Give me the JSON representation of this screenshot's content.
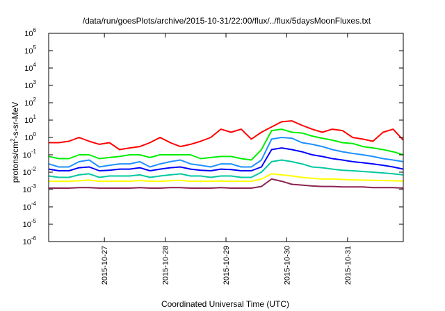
{
  "chart_data": {
    "type": "line",
    "title": "/data/run/goesPlots/archive/2015-10-31/22:00/flux/../flux/5daysMoonFluxes.txt",
    "xlabel": "Coordinated Universal Time (UTC)",
    "ylabel": {
      "prefix": "protons/cm",
      "sup": "2",
      "suffix": "-s-sr-MeV"
    },
    "yscale": "log",
    "ylim": [
      1e-06,
      1000000.0
    ],
    "y_ticks": [
      {
        "base": "10",
        "exp": "-6",
        "value": 1e-06
      },
      {
        "base": "10",
        "exp": "-5",
        "value": 1e-05
      },
      {
        "base": "10",
        "exp": "-4",
        "value": 0.0001
      },
      {
        "base": "10",
        "exp": "-3",
        "value": 0.001
      },
      {
        "base": "10",
        "exp": "-2",
        "value": 0.01
      },
      {
        "base": "10",
        "exp": "-1",
        "value": 0.1
      },
      {
        "base": "10",
        "exp": "0",
        "value": 1
      },
      {
        "base": "10",
        "exp": "1",
        "value": 10
      },
      {
        "base": "10",
        "exp": "2",
        "value": 100
      },
      {
        "base": "10",
        "exp": "3",
        "value": 1000
      },
      {
        "base": "10",
        "exp": "4",
        "value": 10000
      },
      {
        "base": "10",
        "exp": "5",
        "value": 100000
      },
      {
        "base": "10",
        "exp": "6",
        "value": 1000000
      }
    ],
    "xlim": [
      "2015-10-26T02:00",
      "2015-10-31T22:00"
    ],
    "x_ticks": [
      "2015-10-27",
      "2015-10-28",
      "2015-10-29",
      "2015-10-30",
      "2015-10-31"
    ],
    "grid": false,
    "legend": "none",
    "x": [
      "2015-10-26T02:00",
      "2015-10-26T06:00",
      "2015-10-26T10:00",
      "2015-10-26T14:00",
      "2015-10-26T18:00",
      "2015-10-26T22:00",
      "2015-10-27T02:00",
      "2015-10-27T06:00",
      "2015-10-27T10:00",
      "2015-10-27T14:00",
      "2015-10-27T18:00",
      "2015-10-27T22:00",
      "2015-10-28T02:00",
      "2015-10-28T06:00",
      "2015-10-28T10:00",
      "2015-10-28T14:00",
      "2015-10-28T18:00",
      "2015-10-28T22:00",
      "2015-10-29T02:00",
      "2015-10-29T06:00",
      "2015-10-29T10:00",
      "2015-10-29T14:00",
      "2015-10-29T18:00",
      "2015-10-29T22:00",
      "2015-10-30T02:00",
      "2015-10-30T06:00",
      "2015-10-30T10:00",
      "2015-10-30T14:00",
      "2015-10-30T18:00",
      "2015-10-30T22:00",
      "2015-10-31T02:00",
      "2015-10-31T06:00",
      "2015-10-31T10:00",
      "2015-10-31T14:00",
      "2015-10-31T18:00",
      "2015-10-31T22:00"
    ],
    "series": [
      {
        "color": "#ff0000",
        "values": [
          0.5,
          0.5,
          0.6,
          1.0,
          0.6,
          0.4,
          0.5,
          0.2,
          0.25,
          0.3,
          0.5,
          1.0,
          0.5,
          0.3,
          0.4,
          0.6,
          1.0,
          3.0,
          2.0,
          3.0,
          0.8,
          2.0,
          4.0,
          8.0,
          9.0,
          5.0,
          3.0,
          2.0,
          3.0,
          2.5,
          1.0,
          0.8,
          0.6,
          2.0,
          3.0,
          0.7
        ]
      },
      {
        "color": "#00ee00",
        "values": [
          0.08,
          0.06,
          0.06,
          0.1,
          0.1,
          0.06,
          0.07,
          0.08,
          0.1,
          0.1,
          0.07,
          0.1,
          0.1,
          0.1,
          0.1,
          0.06,
          0.07,
          0.08,
          0.08,
          0.06,
          0.05,
          0.2,
          2.5,
          3.0,
          2.0,
          1.8,
          1.2,
          0.9,
          0.7,
          0.5,
          0.45,
          0.3,
          0.25,
          0.2,
          0.15,
          0.1
        ]
      },
      {
        "color": "#1e90ff",
        "values": [
          0.03,
          0.02,
          0.02,
          0.04,
          0.05,
          0.02,
          0.025,
          0.03,
          0.03,
          0.04,
          0.02,
          0.03,
          0.04,
          0.05,
          0.03,
          0.025,
          0.02,
          0.03,
          0.03,
          0.02,
          0.02,
          0.05,
          0.8,
          1.0,
          0.9,
          0.5,
          0.4,
          0.3,
          0.2,
          0.15,
          0.12,
          0.1,
          0.08,
          0.06,
          0.05,
          0.04
        ]
      },
      {
        "color": "#0000ff",
        "values": [
          0.015,
          0.012,
          0.012,
          0.018,
          0.02,
          0.012,
          0.013,
          0.015,
          0.015,
          0.018,
          0.012,
          0.015,
          0.018,
          0.02,
          0.015,
          0.013,
          0.012,
          0.015,
          0.014,
          0.012,
          0.012,
          0.02,
          0.2,
          0.25,
          0.2,
          0.15,
          0.1,
          0.08,
          0.06,
          0.05,
          0.04,
          0.035,
          0.03,
          0.025,
          0.02,
          0.015
        ]
      },
      {
        "color": "#00c8a0",
        "values": [
          0.006,
          0.005,
          0.005,
          0.007,
          0.008,
          0.005,
          0.006,
          0.006,
          0.006,
          0.007,
          0.005,
          0.006,
          0.007,
          0.008,
          0.006,
          0.006,
          0.005,
          0.006,
          0.006,
          0.005,
          0.005,
          0.01,
          0.04,
          0.05,
          0.04,
          0.03,
          0.02,
          0.018,
          0.015,
          0.013,
          0.012,
          0.011,
          0.01,
          0.009,
          0.008,
          0.007
        ]
      },
      {
        "color": "#ffff00",
        "values": [
          0.003,
          0.003,
          0.003,
          0.0032,
          0.0035,
          0.003,
          0.003,
          0.0031,
          0.003,
          0.0033,
          0.003,
          0.003,
          0.0032,
          0.0034,
          0.003,
          0.003,
          0.003,
          0.0031,
          0.003,
          0.003,
          0.003,
          0.004,
          0.008,
          0.007,
          0.006,
          0.005,
          0.0045,
          0.004,
          0.004,
          0.0038,
          0.0036,
          0.0035,
          0.0034,
          0.0033,
          0.0032,
          0.0031
        ]
      },
      {
        "color": "#8b2252",
        "values": [
          0.0012,
          0.0012,
          0.0012,
          0.0013,
          0.0013,
          0.0012,
          0.0012,
          0.0012,
          0.0012,
          0.0013,
          0.0012,
          0.0012,
          0.0013,
          0.0013,
          0.0012,
          0.0012,
          0.0012,
          0.0013,
          0.0012,
          0.0012,
          0.0012,
          0.0015,
          0.004,
          0.003,
          0.002,
          0.0018,
          0.0016,
          0.0015,
          0.0015,
          0.0014,
          0.0014,
          0.0014,
          0.0013,
          0.0013,
          0.0013,
          0.0012
        ]
      }
    ]
  }
}
